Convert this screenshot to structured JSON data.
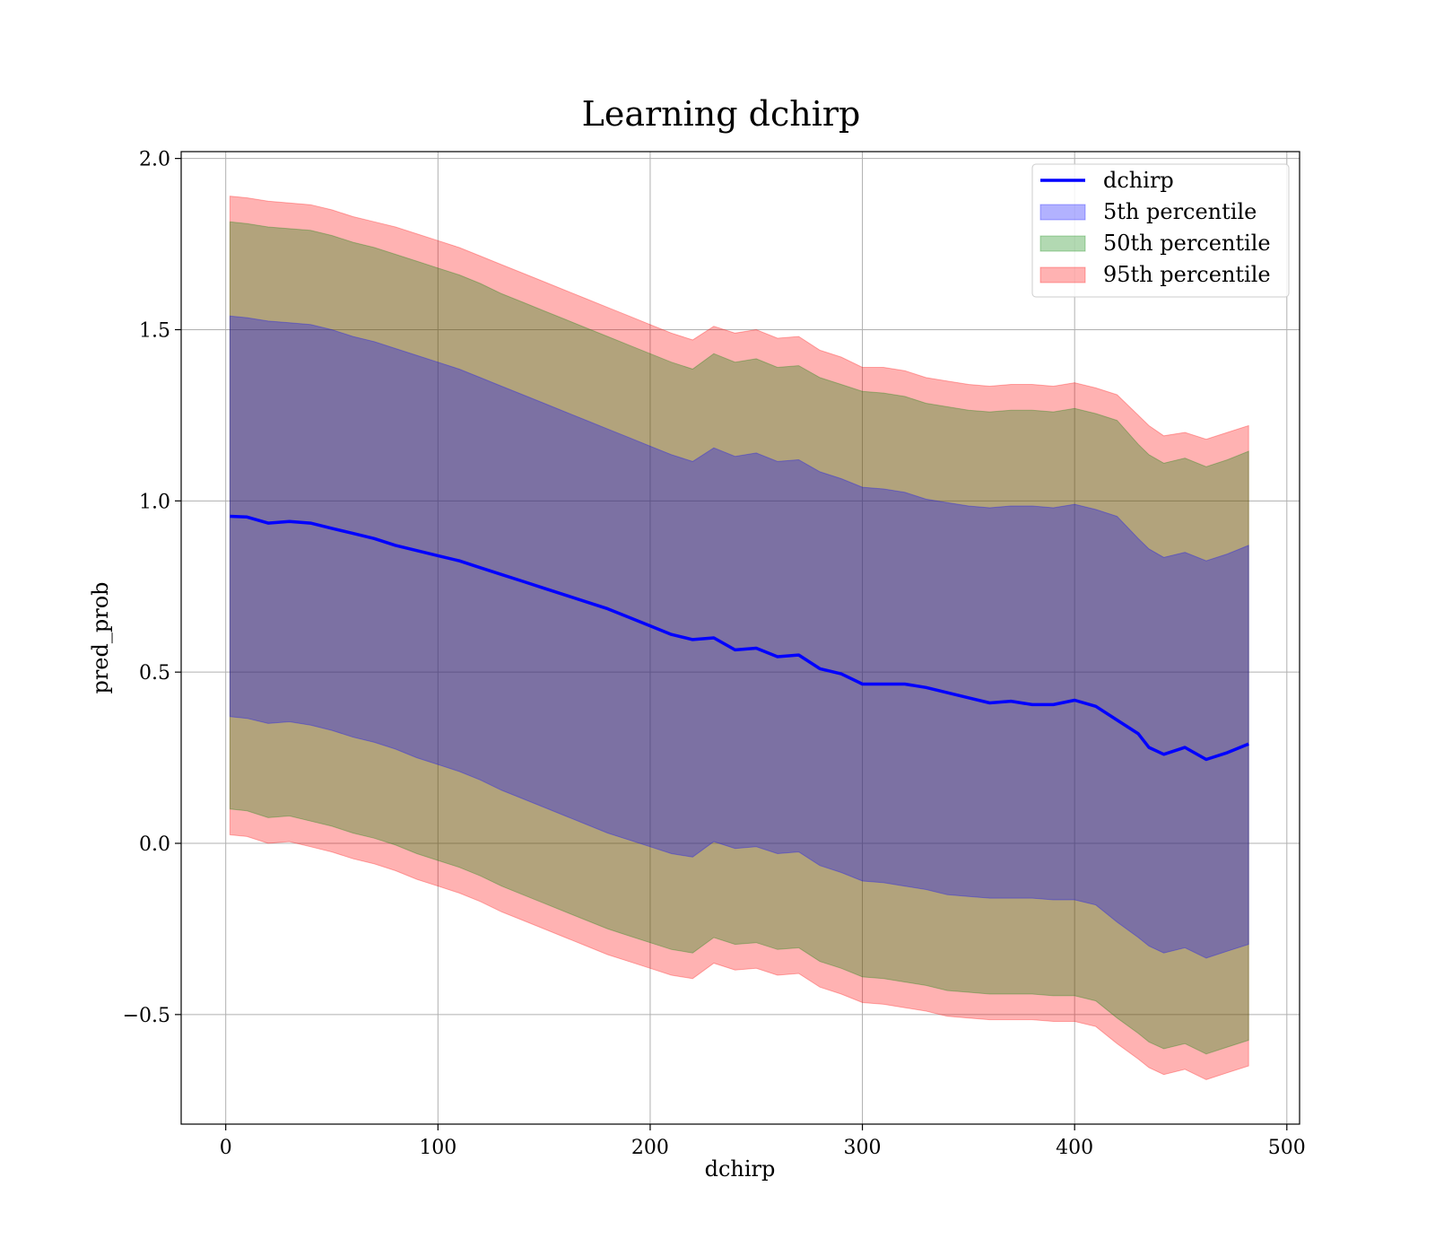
{
  "chart_data": {
    "type": "area",
    "title": "Learning dchirp",
    "xlabel": "dchirp",
    "ylabel": "pred_prob",
    "xlim": [
      -21,
      506
    ],
    "ylim": [
      -0.82,
      2.02
    ],
    "xticks": [
      0,
      100,
      200,
      300,
      400,
      500
    ],
    "yticks": [
      -0.5,
      0.0,
      0.5,
      1.0,
      1.5,
      2.0
    ],
    "xtick_labels": [
      "0",
      "100",
      "200",
      "300",
      "400",
      "500"
    ],
    "ytick_labels": [
      "−0.5",
      "0.0",
      "0.5",
      "1.0",
      "1.5",
      "2.0"
    ],
    "grid": true,
    "legend_position": "top-right",
    "legend": [
      {
        "label": "dchirp",
        "kind": "line",
        "color": "#0000ff"
      },
      {
        "label": "5th percentile",
        "kind": "fill",
        "color": "#0000ff",
        "alpha": 0.3
      },
      {
        "label": "50th percentile",
        "kind": "fill",
        "color": "#008000",
        "alpha": 0.3
      },
      {
        "label": "95th percentile",
        "kind": "fill",
        "color": "#ff0000",
        "alpha": 0.3
      }
    ],
    "x": [
      2,
      10,
      20,
      30,
      40,
      50,
      60,
      70,
      80,
      90,
      100,
      110,
      120,
      130,
      140,
      150,
      160,
      170,
      180,
      190,
      200,
      210,
      220,
      230,
      240,
      250,
      260,
      270,
      280,
      290,
      300,
      310,
      320,
      330,
      340,
      350,
      360,
      370,
      380,
      390,
      400,
      410,
      420,
      430,
      435,
      442,
      452,
      462,
      472,
      482
    ],
    "series": [
      {
        "name": "dchirp",
        "color": "#0000ff",
        "values": [
          0.955,
          0.953,
          0.935,
          0.94,
          0.935,
          0.92,
          0.905,
          0.89,
          0.87,
          0.855,
          0.84,
          0.825,
          0.805,
          0.785,
          0.765,
          0.745,
          0.725,
          0.705,
          0.685,
          0.66,
          0.635,
          0.61,
          0.595,
          0.6,
          0.565,
          0.57,
          0.545,
          0.55,
          0.51,
          0.495,
          0.465,
          0.465,
          0.465,
          0.455,
          0.44,
          0.425,
          0.41,
          0.415,
          0.405,
          0.405,
          0.418,
          0.4,
          0.36,
          0.32,
          0.28,
          0.26,
          0.28,
          0.245,
          0.265,
          0.29
        ]
      }
    ],
    "bands": [
      {
        "name": "95th percentile",
        "color": "#ff0000",
        "alpha": 0.3,
        "upper": [
          1.89,
          1.885,
          1.875,
          1.87,
          1.865,
          1.85,
          1.83,
          1.815,
          1.8,
          1.78,
          1.76,
          1.74,
          1.715,
          1.69,
          1.665,
          1.64,
          1.615,
          1.59,
          1.565,
          1.54,
          1.515,
          1.49,
          1.47,
          1.51,
          1.49,
          1.5,
          1.475,
          1.48,
          1.44,
          1.42,
          1.39,
          1.39,
          1.38,
          1.36,
          1.35,
          1.34,
          1.335,
          1.34,
          1.34,
          1.335,
          1.345,
          1.33,
          1.31,
          1.25,
          1.22,
          1.19,
          1.2,
          1.18,
          1.2,
          1.22
        ],
        "lower": [
          0.025,
          0.02,
          0.0,
          0.005,
          -0.01,
          -0.025,
          -0.045,
          -0.06,
          -0.08,
          -0.105,
          -0.125,
          -0.145,
          -0.17,
          -0.2,
          -0.225,
          -0.25,
          -0.275,
          -0.3,
          -0.325,
          -0.345,
          -0.365,
          -0.385,
          -0.395,
          -0.35,
          -0.37,
          -0.365,
          -0.385,
          -0.38,
          -0.42,
          -0.44,
          -0.465,
          -0.47,
          -0.48,
          -0.49,
          -0.505,
          -0.51,
          -0.515,
          -0.515,
          -0.515,
          -0.52,
          -0.52,
          -0.535,
          -0.585,
          -0.63,
          -0.655,
          -0.675,
          -0.66,
          -0.69,
          -0.67,
          -0.65
        ]
      },
      {
        "name": "50th percentile",
        "color": "#008000",
        "alpha": 0.3,
        "upper": [
          1.815,
          1.81,
          1.8,
          1.795,
          1.79,
          1.775,
          1.755,
          1.74,
          1.72,
          1.7,
          1.68,
          1.66,
          1.635,
          1.605,
          1.58,
          1.555,
          1.53,
          1.505,
          1.48,
          1.455,
          1.43,
          1.405,
          1.385,
          1.43,
          1.405,
          1.415,
          1.39,
          1.395,
          1.36,
          1.34,
          1.32,
          1.315,
          1.305,
          1.285,
          1.275,
          1.265,
          1.26,
          1.265,
          1.265,
          1.26,
          1.27,
          1.255,
          1.235,
          1.165,
          1.135,
          1.11,
          1.125,
          1.1,
          1.12,
          1.145
        ],
        "lower": [
          0.1,
          0.095,
          0.075,
          0.08,
          0.065,
          0.05,
          0.03,
          0.015,
          -0.005,
          -0.03,
          -0.05,
          -0.07,
          -0.095,
          -0.125,
          -0.15,
          -0.175,
          -0.2,
          -0.225,
          -0.25,
          -0.27,
          -0.29,
          -0.31,
          -0.32,
          -0.275,
          -0.295,
          -0.29,
          -0.31,
          -0.305,
          -0.345,
          -0.365,
          -0.39,
          -0.395,
          -0.405,
          -0.415,
          -0.43,
          -0.435,
          -0.44,
          -0.44,
          -0.44,
          -0.445,
          -0.445,
          -0.46,
          -0.51,
          -0.555,
          -0.58,
          -0.6,
          -0.585,
          -0.615,
          -0.595,
          -0.575
        ]
      },
      {
        "name": "5th percentile",
        "color": "#0000ff",
        "alpha": 0.3,
        "upper": [
          1.54,
          1.535,
          1.525,
          1.52,
          1.515,
          1.5,
          1.48,
          1.465,
          1.445,
          1.425,
          1.405,
          1.385,
          1.36,
          1.335,
          1.31,
          1.285,
          1.26,
          1.235,
          1.21,
          1.185,
          1.16,
          1.135,
          1.115,
          1.155,
          1.13,
          1.14,
          1.115,
          1.12,
          1.085,
          1.065,
          1.04,
          1.035,
          1.025,
          1.005,
          0.995,
          0.985,
          0.98,
          0.985,
          0.985,
          0.98,
          0.99,
          0.975,
          0.955,
          0.89,
          0.86,
          0.835,
          0.85,
          0.825,
          0.845,
          0.87
        ],
        "lower": [
          0.37,
          0.365,
          0.35,
          0.355,
          0.345,
          0.33,
          0.31,
          0.295,
          0.275,
          0.25,
          0.23,
          0.21,
          0.185,
          0.155,
          0.13,
          0.105,
          0.08,
          0.055,
          0.03,
          0.01,
          -0.01,
          -0.03,
          -0.04,
          0.005,
          -0.015,
          -0.01,
          -0.03,
          -0.025,
          -0.065,
          -0.085,
          -0.11,
          -0.115,
          -0.125,
          -0.135,
          -0.15,
          -0.155,
          -0.16,
          -0.16,
          -0.16,
          -0.165,
          -0.165,
          -0.18,
          -0.23,
          -0.275,
          -0.3,
          -0.32,
          -0.305,
          -0.335,
          -0.315,
          -0.295
        ]
      }
    ]
  }
}
